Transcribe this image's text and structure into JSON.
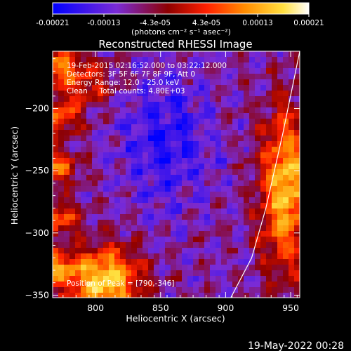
{
  "chart_data": {
    "type": "heatmap",
    "title": "Reconstructed RHESSI Image",
    "xlabel": "Heliocentric X (arcsec)",
    "ylabel": "Heliocentric Y (arcsec)",
    "xlim": [
      767,
      957
    ],
    "ylim": [
      -352,
      -154
    ],
    "x_ticks": [
      800,
      850,
      900,
      950
    ],
    "y_ticks": [
      -200,
      -250,
      -300,
      -350
    ],
    "y_tick_labels": [
      "−200",
      "−250",
      "−300",
      "−350"
    ],
    "colorbar": {
      "min": -0.00021,
      "max": 0.00021,
      "tick_labels": [
        "-0.00021",
        "-0.00013",
        "-4.3e-05",
        "4.3e-05",
        "0.00013",
        "0.00021"
      ],
      "units_label": "(photons cm⁻² s⁻¹ asec⁻²)",
      "colormap": [
        "#0000ff",
        "#7a2bd6",
        "#8e0000",
        "#ff2000",
        "#ff8c00",
        "#ffe040",
        "#ffffff"
      ]
    },
    "annotations": [
      "19-Feb-2015 02:16:52.000 to 03:22:12.000",
      "Detectors: 3F 5F 6F 7F 8F 9F, Att 0",
      "Energy Range: 12.0 - 25.0 keV",
      "Clean     Total counts: 4.80E+03"
    ],
    "peak_label": "Position of Peak = [790,-346]",
    "limb_curve": [
      {
        "x": 957,
        "y": -154
      },
      {
        "x": 944,
        "y": -220
      },
      {
        "x": 931,
        "y": -280
      },
      {
        "x": 920,
        "y": -320
      },
      {
        "x": 904,
        "y": -352
      }
    ],
    "grid": false,
    "legend": "none"
  },
  "footer": {
    "timestamp": "19-May-2022 00:28"
  }
}
